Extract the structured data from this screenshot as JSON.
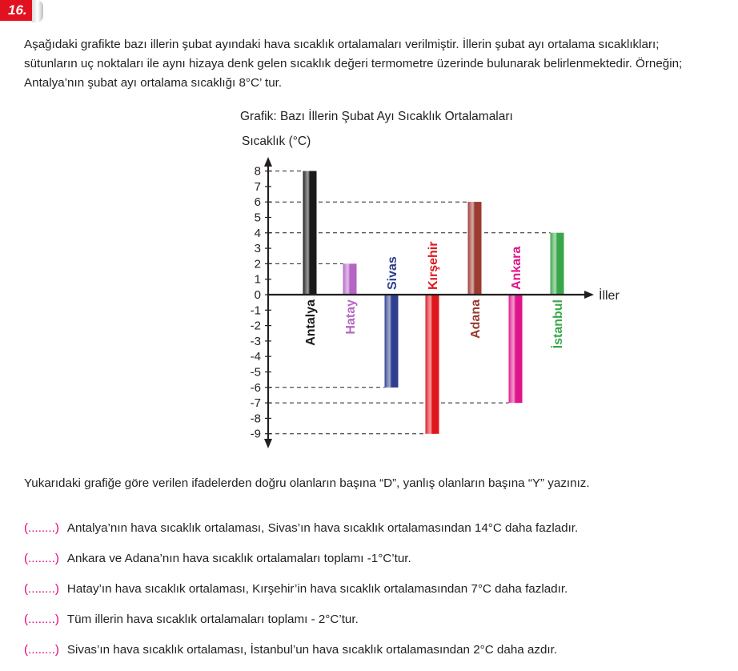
{
  "question_number": "16.",
  "intro_text": "Aşağıdaki grafikte bazı illerin şubat ayındaki hava sıcaklık ortalamaları verilmiştir.  İllerin şubat ayı ortalama sıcaklıkları; sütunların uç noktaları ile aynı hizaya denk gelen sıcaklık değeri termometre üzerinde bulunarak belirlenmektedir. Örneğin; Antalya’nın şubat ayı ortalama sıcaklığı 8°C’ tur.",
  "chart_data": {
    "type": "bar",
    "title": "Grafik: Bazı İllerin Şubat Ayı Sıcaklık Ortalamaları",
    "ylabel": "Sıcaklık (°C)",
    "xlabel": "İller",
    "ylim": [
      -9,
      8
    ],
    "ticks": [
      "8",
      "7",
      "6",
      "5",
      "4",
      "3",
      "2",
      "1",
      "0",
      "-1",
      "-2",
      "-3",
      "-4",
      "-5",
      "-6",
      "-7",
      "-8",
      "-9"
    ],
    "categories": [
      "Antalya",
      "Hatay",
      "Sivas",
      "Kırşehir",
      "Adana",
      "Ankara",
      "İstanbul"
    ],
    "values": [
      8,
      2,
      -6,
      -9,
      6,
      -7,
      4
    ],
    "colors": [
      "#1a1a1a",
      "#b565c4",
      "#2e3f8f",
      "#e0161e",
      "#9b3b32",
      "#e0148c",
      "#3aa64a"
    ],
    "grid": "dashed reference lines at bar tops"
  },
  "question_text": "Yukarıdaki grafiğe göre verilen ifadelerden doğru olanların başına “D”, yanlış olanların başına “Y” yazınız.",
  "statements": [
    {
      "blank": "(........)",
      "text": "Antalya’nın hava sıcaklık ortalaması, Sivas’ın hava sıcaklık ortalamasından 14°C daha fazladır."
    },
    {
      "blank": "(........)",
      "text": "Ankara ve Adana’nın hava sıcaklık ortalamaları toplamı -1°C’tur."
    },
    {
      "blank": "(........)",
      "text": "Hatay’ın hava sıcaklık ortalaması, Kırşehir’in hava sıcaklık ortalamasından 7°C daha fazladır."
    },
    {
      "blank": "(........)",
      "text": "Tüm illerin hava sıcaklık ortalamaları toplamı - 2°C’tur."
    },
    {
      "blank": "(........)",
      "text": "Sivas’ın hava sıcaklık ortalaması, İstanbul’un hava sıcaklık ortalamasından 2°C daha azdır."
    }
  ]
}
